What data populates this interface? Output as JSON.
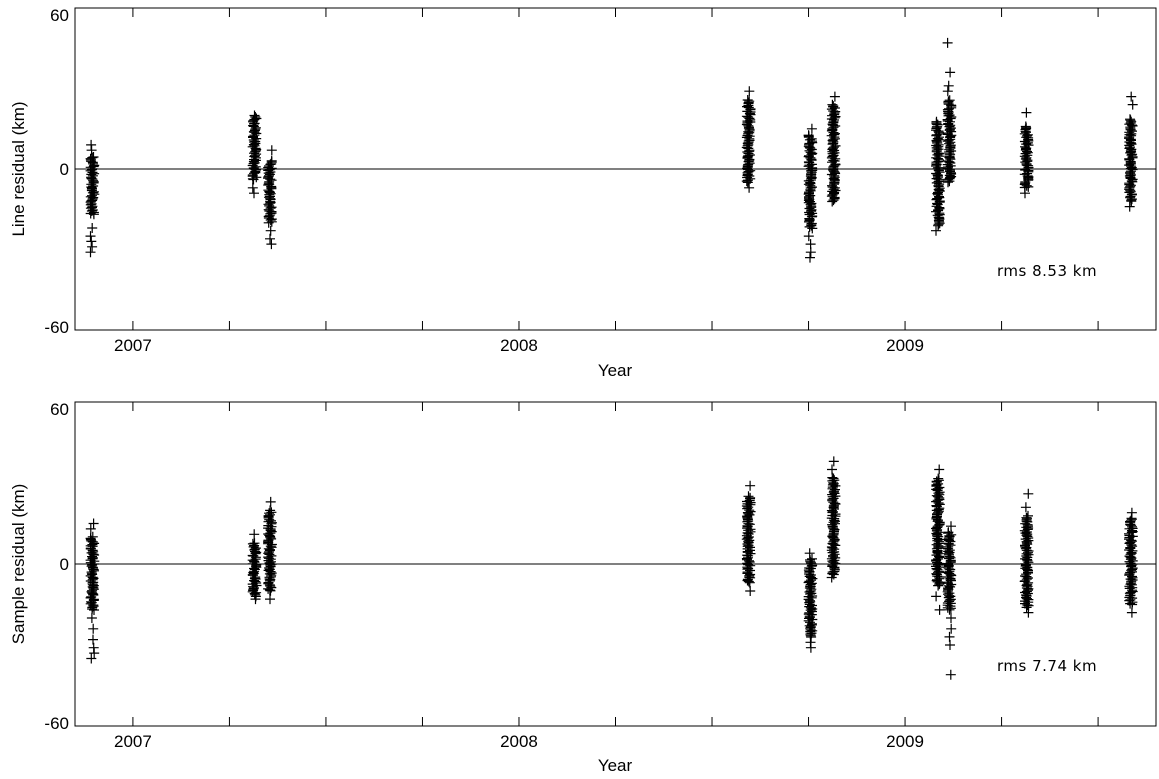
{
  "chart_data": [
    {
      "type": "scatter",
      "marker": "+",
      "xlabel": "Year",
      "ylabel": "Line residual (km)",
      "xlim": [
        2006.85,
        2009.65
      ],
      "ylim": [
        -60,
        60
      ],
      "x_tick_labels": [
        {
          "value": 2007,
          "label": "2007"
        },
        {
          "value": 2008,
          "label": "2008"
        },
        {
          "value": 2009,
          "label": "2009"
        }
      ],
      "x_minor_ticks": [
        2007,
        2007.25,
        2007.5,
        2007.75,
        2008,
        2008.25,
        2008.5,
        2008.75,
        2009,
        2009.25,
        2009.5
      ],
      "y_tick_labels": [
        {
          "value": 60,
          "label": "60"
        },
        {
          "value": 0,
          "label": "0"
        },
        {
          "value": -60,
          "label": "-60"
        }
      ],
      "zero_line": true,
      "grid": false,
      "annotation": "rms 8.53 km",
      "clusters": [
        {
          "x": 2006.89,
          "x2": 2006.9,
          "min": -17,
          "max": 5,
          "outliers": [
            -22,
            -25,
            -27,
            -29,
            -31,
            7,
            9
          ]
        },
        {
          "x": 2007.31,
          "x2": 2007.32,
          "min": -4,
          "max": 20,
          "outliers": [
            -7,
            -9
          ]
        },
        {
          "x": 2007.35,
          "x2": 2007.36,
          "min": -20,
          "max": 3,
          "outliers": [
            -23,
            -26,
            -28,
            7
          ]
        },
        {
          "x": 2008.59,
          "x2": 2008.6,
          "min": -5,
          "max": 26,
          "outliers": [
            -7,
            29
          ]
        },
        {
          "x": 2008.75,
          "x2": 2008.76,
          "min": -22,
          "max": 13,
          "outliers": [
            -25,
            -28,
            -31,
            -33,
            15
          ]
        },
        {
          "x": 2008.81,
          "x2": 2008.82,
          "min": -12,
          "max": 24,
          "outliers": [
            27
          ]
        },
        {
          "x": 2009.08,
          "x2": 2009.09,
          "min": -21,
          "max": 18,
          "outliers": [
            -23
          ]
        },
        {
          "x": 2009.11,
          "x2": 2009.12,
          "min": -5,
          "max": 26,
          "outliers": [
            29,
            31,
            36,
            47
          ]
        },
        {
          "x": 2009.31,
          "x2": 2009.32,
          "min": -7,
          "max": 16,
          "outliers": [
            -9,
            21
          ]
        },
        {
          "x": 2009.58,
          "x2": 2009.59,
          "min": -12,
          "max": 19,
          "outliers": [
            -14,
            24,
            27
          ]
        }
      ]
    },
    {
      "type": "scatter",
      "marker": "+",
      "xlabel": "Year",
      "ylabel": "Sample residual (km)",
      "xlim": [
        2006.85,
        2009.65
      ],
      "ylim": [
        -60,
        60
      ],
      "x_tick_labels": [
        {
          "value": 2007,
          "label": "2007"
        },
        {
          "value": 2008,
          "label": "2008"
        },
        {
          "value": 2009,
          "label": "2009"
        }
      ],
      "x_minor_ticks": [
        2007,
        2007.25,
        2007.5,
        2007.75,
        2008,
        2008.25,
        2008.5,
        2008.75,
        2009,
        2009.25,
        2009.5
      ],
      "y_tick_labels": [
        {
          "value": 60,
          "label": "60"
        },
        {
          "value": 0,
          "label": "0"
        },
        {
          "value": -60,
          "label": "-60"
        }
      ],
      "zero_line": true,
      "grid": false,
      "annotation": "rms 7.74 km",
      "clusters": [
        {
          "x": 2006.89,
          "x2": 2006.9,
          "min": -17,
          "max": 10,
          "outliers": [
            -20,
            -24,
            -28,
            -31,
            -33,
            -35,
            13,
            15
          ]
        },
        {
          "x": 2007.31,
          "x2": 2007.32,
          "min": -12,
          "max": 8,
          "outliers": [
            -13,
            11
          ]
        },
        {
          "x": 2007.35,
          "x2": 2007.36,
          "min": -10,
          "max": 20,
          "outliers": [
            -13,
            23
          ]
        },
        {
          "x": 2008.59,
          "x2": 2008.6,
          "min": -7,
          "max": 25,
          "outliers": [
            -10,
            29
          ]
        },
        {
          "x": 2008.75,
          "x2": 2008.76,
          "min": -27,
          "max": 2,
          "outliers": [
            -29,
            -31,
            4
          ]
        },
        {
          "x": 2008.81,
          "x2": 2008.82,
          "min": -4,
          "max": 32,
          "outliers": [
            -5,
            35,
            38
          ]
        },
        {
          "x": 2009.08,
          "x2": 2009.09,
          "min": -8,
          "max": 32,
          "outliers": [
            -12,
            -17,
            35
          ]
        },
        {
          "x": 2009.11,
          "x2": 2009.12,
          "min": -17,
          "max": 12,
          "outliers": [
            -20,
            -24,
            -27,
            -30,
            -41,
            14
          ]
        },
        {
          "x": 2009.31,
          "x2": 2009.32,
          "min": -16,
          "max": 18,
          "outliers": [
            -18,
            21,
            26
          ]
        },
        {
          "x": 2009.58,
          "x2": 2009.59,
          "min": -15,
          "max": 17,
          "outliers": [
            -18,
            19
          ]
        }
      ]
    }
  ]
}
